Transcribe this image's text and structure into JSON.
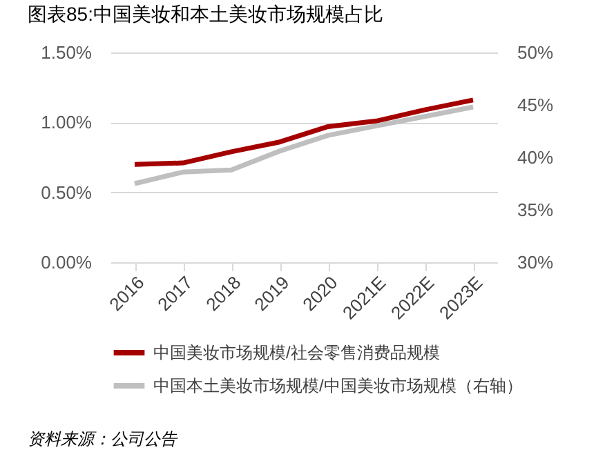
{
  "chart_data": {
    "type": "line",
    "title": "图表85:中国美妆和本土美妆市场规模占比",
    "categories": [
      "2016",
      "2017",
      "2018",
      "2019",
      "2020",
      "2021E",
      "2022E",
      "2023E"
    ],
    "series": [
      {
        "name": "中国美妆市场规模/社会零售消费品规模",
        "color": "#a50000",
        "values": [
          0.7,
          0.71,
          0.79,
          0.86,
          0.97,
          1.01,
          1.09,
          1.16
        ]
      },
      {
        "name": "中国本土美妆市场规模/中国美妆市场规模（右轴）",
        "color": "#bfbfbf",
        "axis": "y2",
        "values": [
          37.5,
          38.6,
          38.8,
          40.6,
          42.1,
          43.0,
          43.9,
          44.8
        ]
      }
    ],
    "ylim": [
      0,
      1.5
    ],
    "yticks": [
      {
        "value": 0,
        "label": "0.00%"
      },
      {
        "value": 0.5,
        "label": "0.50%"
      },
      {
        "value": 1.0,
        "label": "1.00%"
      },
      {
        "value": 1.5,
        "label": "1.50%"
      }
    ],
    "y2lim": [
      30,
      50
    ],
    "y2ticks": [
      {
        "value": 30,
        "label": "30%"
      },
      {
        "value": 35,
        "label": "35%"
      },
      {
        "value": 40,
        "label": "40%"
      },
      {
        "value": 45,
        "label": "45%"
      },
      {
        "value": 50,
        "label": "50%"
      }
    ],
    "grid": "y",
    "legend": "bottom",
    "marker": "none",
    "line_style": "solid",
    "annotations": [
      "资料来源：公司公告"
    ]
  }
}
